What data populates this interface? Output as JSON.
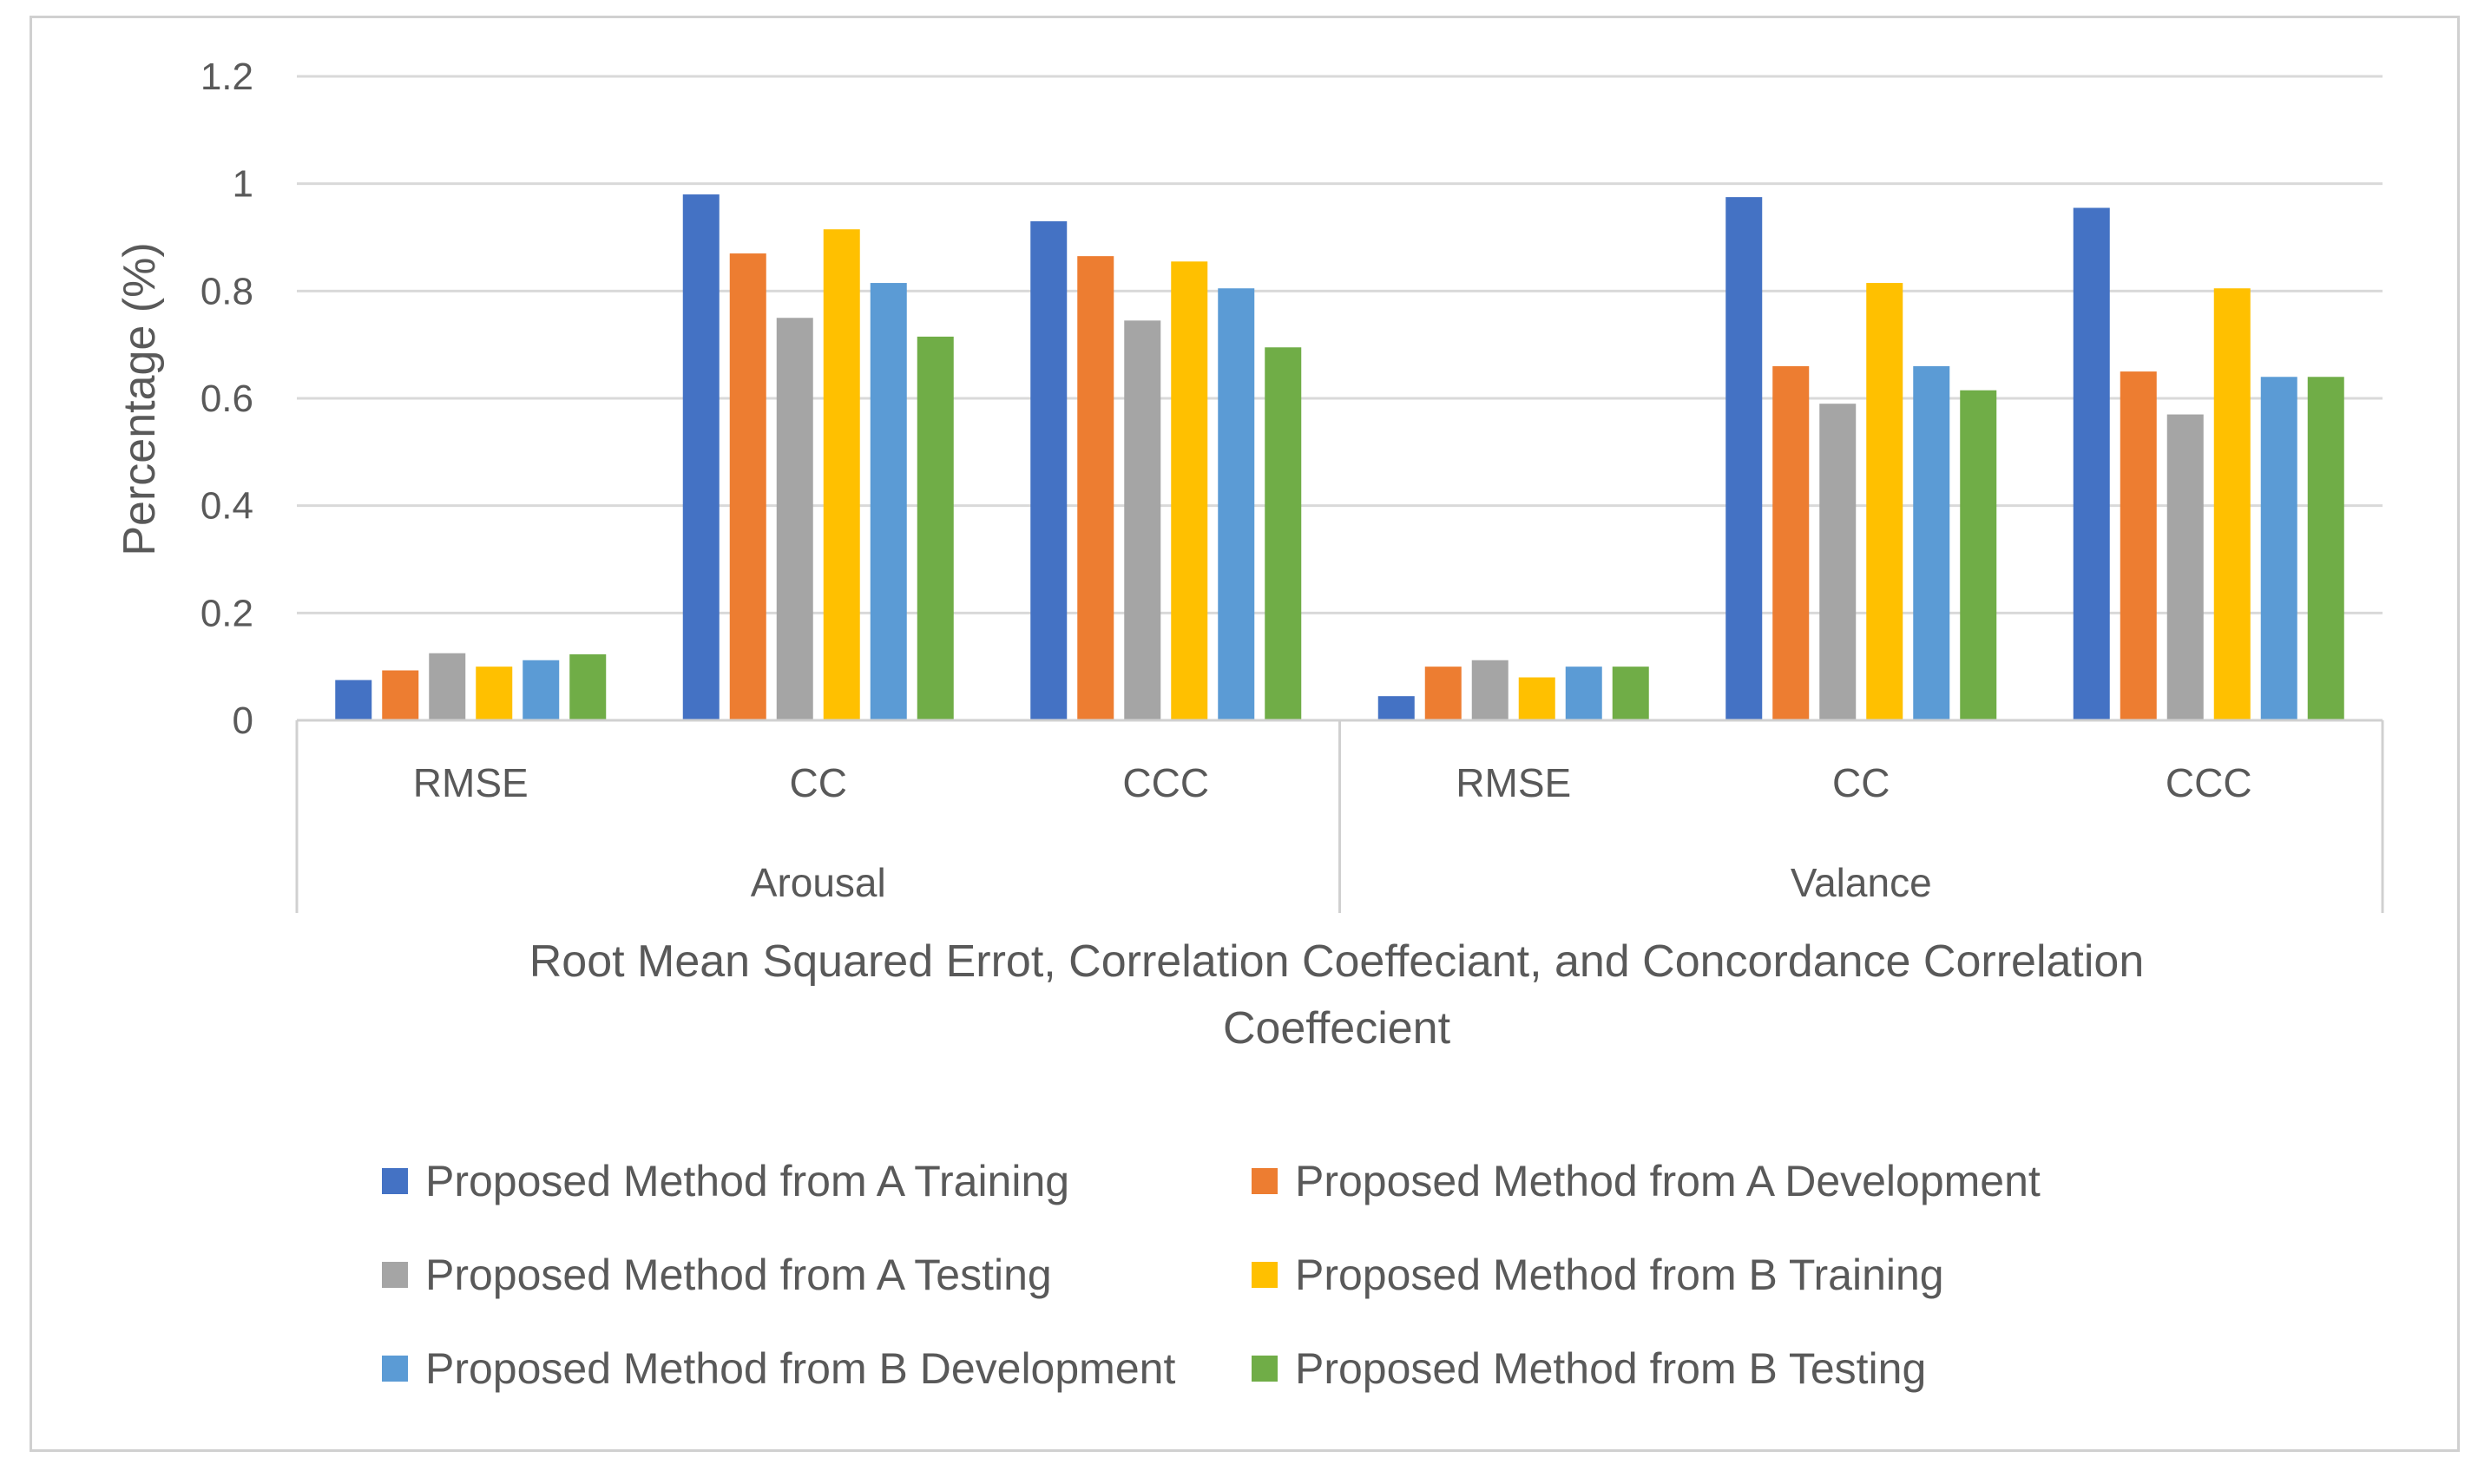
{
  "chart_data": {
    "type": "bar",
    "ylabel": "Percentage (%)",
    "xlabel_lines": [
      "Root Mean Squared Errot, Correlation Coeffeciant, and Concordance Correlation",
      "Coeffecient"
    ],
    "ylim": [
      0,
      1.2
    ],
    "yticks": [
      "0",
      "0.2",
      "0.4",
      "0.6",
      "0.8",
      "1",
      "1.2"
    ],
    "grid": true,
    "legend_position": "bottom",
    "groups": [
      {
        "label": "Arousal",
        "categories": [
          "RMSE",
          "CC",
          "CCC"
        ]
      },
      {
        "label": "Valance",
        "categories": [
          "RMSE",
          "CC",
          "CCC"
        ]
      }
    ],
    "series": [
      {
        "name": "Proposed Method from A Training",
        "color": "#4472C4",
        "values": [
          0.075,
          0.98,
          0.93,
          0.045,
          0.975,
          0.955
        ]
      },
      {
        "name": "Proposed Method from A Development",
        "color": "#ED7D31",
        "values": [
          0.093,
          0.87,
          0.865,
          0.1,
          0.66,
          0.65
        ]
      },
      {
        "name": "Proposed Method from A Testing",
        "color": "#A5A5A5",
        "values": [
          0.125,
          0.75,
          0.745,
          0.112,
          0.59,
          0.57
        ]
      },
      {
        "name": "Proposed Method from B Training",
        "color": "#FFC000",
        "values": [
          0.1,
          0.915,
          0.855,
          0.08,
          0.815,
          0.805
        ]
      },
      {
        "name": "Proposed Method from B Development",
        "color": "#5B9BD5",
        "values": [
          0.112,
          0.815,
          0.805,
          0.1,
          0.66,
          0.64
        ]
      },
      {
        "name": "Proposed Method from B Testing",
        "color": "#70AD47",
        "values": [
          0.123,
          0.715,
          0.695,
          0.1,
          0.615,
          0.64
        ]
      }
    ]
  }
}
